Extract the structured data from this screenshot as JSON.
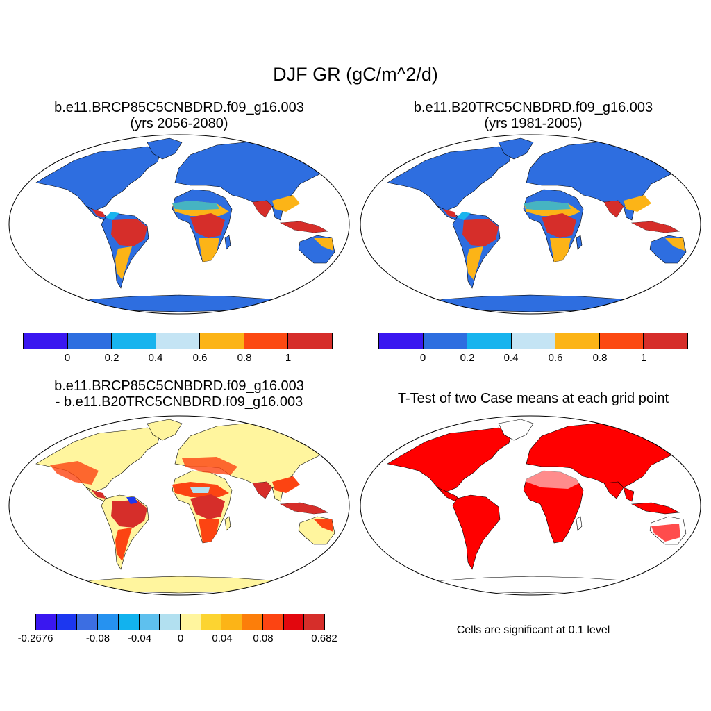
{
  "title": "DJF GR (gC/m^2/d)",
  "panels": [
    {
      "line1": "b.e11.BRCP85C5CNBDRD.f09_g16.003",
      "line2": "(yrs 2056-2080)"
    },
    {
      "line1": "b.e11.B20TRC5CNBDRD.f09_g16.003",
      "line2": "(yrs 1981-2005)"
    },
    {
      "line1": "b.e11.BRCP85C5CNBDRD.f09_g16.003",
      "line2": "- b.e11.B20TRC5CNBDRD.f09_g16.003"
    },
    {
      "line1": "T-Test of two Case means at each grid point"
    }
  ],
  "colorbar_abs": {
    "colors": [
      "#3a17f0",
      "#2e6ee0",
      "#18b4ee",
      "#c4e4f4",
      "#fcb417",
      "#fc4912",
      "#d62e2a"
    ],
    "labels": [
      "0",
      "0.2",
      "0.4",
      "0.6",
      "0.8",
      "1"
    ]
  },
  "colorbar_diff": {
    "colors": [
      "#3a17f0",
      "#1c37f0",
      "#3c6ee2",
      "#2692f0",
      "#12b2ee",
      "#5ec0ee",
      "#b2e0f0",
      "#fff59e",
      "#fcd431",
      "#fcb417",
      "#fc7e0a",
      "#fc4412",
      "#e2070e",
      "#d62e2a"
    ],
    "labels": [
      "-0.2676",
      "-0.08",
      "-0.04",
      "0",
      "0.04",
      "0.08",
      "0.682"
    ]
  },
  "ttest_color": "#ff0000",
  "note": "Cells are significant at 0.1 level"
}
